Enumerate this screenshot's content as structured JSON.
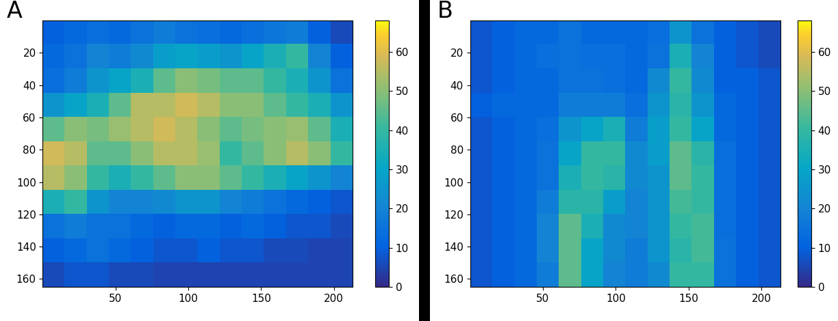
{
  "chart_data": [
    {
      "type": "heatmap",
      "label": "A",
      "xlim": [
        0,
        213
      ],
      "ylim": [
        165,
        0
      ],
      "xticks": [
        50,
        100,
        150,
        200
      ],
      "yticks": [
        20,
        40,
        60,
        80,
        100,
        120,
        140,
        160
      ],
      "colorbar_range": [
        0,
        68
      ],
      "colorbar_ticks": [
        0,
        10,
        20,
        30,
        40,
        50,
        60
      ],
      "cells": [
        [
          10,
          12,
          14,
          12,
          15,
          18,
          15,
          14,
          12,
          14,
          16,
          18,
          10,
          6
        ],
        [
          12,
          15,
          20,
          18,
          22,
          28,
          30,
          28,
          25,
          30,
          35,
          40,
          20,
          10
        ],
        [
          14,
          18,
          25,
          30,
          35,
          45,
          50,
          48,
          45,
          45,
          40,
          35,
          25,
          15
        ],
        [
          25,
          30,
          35,
          45,
          55,
          55,
          58,
          55,
          50,
          50,
          45,
          40,
          35,
          25
        ],
        [
          45,
          50,
          48,
          52,
          55,
          58,
          55,
          50,
          45,
          48,
          50,
          52,
          45,
          35
        ],
        [
          58,
          55,
          45,
          45,
          50,
          55,
          55,
          52,
          40,
          45,
          50,
          55,
          50,
          40
        ],
        [
          55,
          50,
          40,
          35,
          40,
          45,
          50,
          50,
          45,
          40,
          35,
          30,
          25,
          20
        ],
        [
          35,
          40,
          25,
          20,
          20,
          22,
          25,
          25,
          20,
          18,
          15,
          12,
          10,
          8
        ],
        [
          15,
          18,
          15,
          15,
          12,
          10,
          12,
          12,
          10,
          12,
          10,
          8,
          8,
          6
        ],
        [
          10,
          12,
          15,
          12,
          10,
          8,
          8,
          10,
          8,
          8,
          6,
          6,
          5,
          5
        ],
        [
          6,
          8,
          8,
          6,
          6,
          5,
          5,
          5,
          5,
          5,
          5,
          5,
          5,
          5
        ]
      ]
    },
    {
      "type": "heatmap",
      "label": "B",
      "xlim": [
        0,
        213
      ],
      "ylim": [
        165,
        0
      ],
      "xticks": [
        50,
        100,
        150,
        200
      ],
      "yticks": [
        20,
        40,
        60,
        80,
        100,
        120,
        140,
        160
      ],
      "colorbar_range": [
        0,
        68
      ],
      "colorbar_ticks": [
        0,
        10,
        20,
        30,
        40,
        50,
        60
      ],
      "cells": [
        [
          8,
          10,
          12,
          12,
          15,
          12,
          12,
          12,
          14,
          25,
          15,
          10,
          8,
          6
        ],
        [
          8,
          10,
          12,
          14,
          15,
          14,
          14,
          12,
          15,
          35,
          20,
          10,
          8,
          6
        ],
        [
          8,
          10,
          12,
          12,
          15,
          15,
          14,
          12,
          22,
          40,
          22,
          10,
          10,
          8
        ],
        [
          10,
          12,
          12,
          12,
          18,
          18,
          18,
          14,
          25,
          38,
          25,
          12,
          10,
          8
        ],
        [
          8,
          10,
          12,
          14,
          25,
          30,
          35,
          18,
          28,
          40,
          30,
          12,
          10,
          8
        ],
        [
          8,
          10,
          12,
          15,
          30,
          40,
          40,
          22,
          28,
          45,
          38,
          14,
          10,
          8
        ],
        [
          8,
          10,
          12,
          15,
          35,
          40,
          38,
          22,
          25,
          45,
          40,
          14,
          10,
          8
        ],
        [
          8,
          10,
          12,
          18,
          38,
          38,
          28,
          20,
          25,
          42,
          40,
          14,
          10,
          8
        ],
        [
          8,
          10,
          12,
          20,
          45,
          35,
          22,
          20,
          25,
          40,
          42,
          14,
          10,
          8
        ],
        [
          8,
          10,
          12,
          20,
          45,
          30,
          22,
          18,
          25,
          38,
          42,
          15,
          10,
          8
        ],
        [
          8,
          10,
          12,
          18,
          45,
          30,
          20,
          18,
          22,
          40,
          40,
          15,
          10,
          8
        ]
      ]
    }
  ]
}
